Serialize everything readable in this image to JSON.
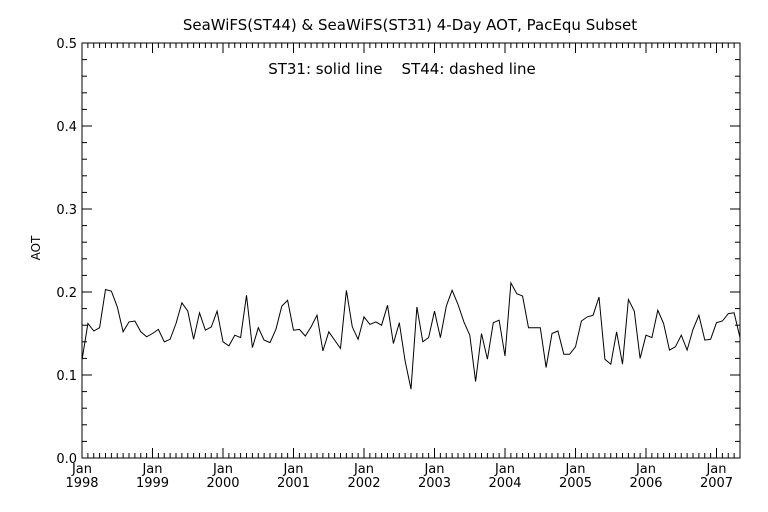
{
  "chart_data": {
    "type": "line",
    "title": "SeaWiFS(ST44) & SeaWiFS(ST31) 4-Day AOT, PacEqu Subset",
    "annotation": "ST31: solid line    ST44: dashed line",
    "xlabel": "",
    "ylabel": "AOT",
    "ylim": [
      0.0,
      0.5
    ],
    "yticks": [
      "0.0",
      "0.1",
      "0.2",
      "0.3",
      "0.4",
      "0.5"
    ],
    "yticks_values": [
      0.0,
      0.1,
      0.2,
      0.3,
      0.4,
      0.5
    ],
    "xlim": [
      "1998-01",
      "2007-05"
    ],
    "xticks": [
      {
        "month": "Jan",
        "year": "1998",
        "date": "1998-01"
      },
      {
        "month": "Jan",
        "year": "1999",
        "date": "1999-01"
      },
      {
        "month": "Jan",
        "year": "2000",
        "date": "2000-01"
      },
      {
        "month": "Jan",
        "year": "2001",
        "date": "2001-01"
      },
      {
        "month": "Jan",
        "year": "2002",
        "date": "2002-01"
      },
      {
        "month": "Jan",
        "year": "2003",
        "date": "2003-01"
      },
      {
        "month": "Jan",
        "year": "2004",
        "date": "2004-01"
      },
      {
        "month": "Jan",
        "year": "2005",
        "date": "2005-01"
      },
      {
        "month": "Jan",
        "year": "2006",
        "date": "2006-01"
      },
      {
        "month": "Jan",
        "year": "2007",
        "date": "2007-01"
      }
    ],
    "grid": false,
    "series": [
      {
        "name": "ST31",
        "style": "solid",
        "color": "#000000",
        "x": [
          "1998-01",
          "1998-02",
          "1998-03",
          "1998-04",
          "1998-05",
          "1998-06",
          "1998-07",
          "1998-08",
          "1998-09",
          "1998-10",
          "1998-11",
          "1998-12",
          "1999-01",
          "1999-02",
          "1999-03",
          "1999-04",
          "1999-05",
          "1999-06",
          "1999-07",
          "1999-08",
          "1999-09",
          "1999-10",
          "1999-11",
          "1999-12",
          "2000-01",
          "2000-02",
          "2000-03",
          "2000-04",
          "2000-05",
          "2000-06",
          "2000-07",
          "2000-08",
          "2000-09",
          "2000-10",
          "2000-11",
          "2000-12",
          "2001-01",
          "2001-02",
          "2001-03",
          "2001-04",
          "2001-05",
          "2001-06",
          "2001-07",
          "2001-08",
          "2001-09",
          "2001-10",
          "2001-11",
          "2001-12",
          "2002-01",
          "2002-02",
          "2002-03",
          "2002-04",
          "2002-05",
          "2002-06",
          "2002-07",
          "2002-08",
          "2002-09",
          "2002-10",
          "2002-11",
          "2002-12",
          "2003-01",
          "2003-02",
          "2003-03",
          "2003-04",
          "2003-05",
          "2003-06",
          "2003-07",
          "2003-08",
          "2003-09",
          "2003-10",
          "2003-11",
          "2003-12",
          "2004-01",
          "2004-02",
          "2004-03",
          "2004-04",
          "2004-05",
          "2004-06",
          "2004-07",
          "2004-08",
          "2004-09",
          "2004-10",
          "2004-11",
          "2004-12",
          "2005-01",
          "2005-02",
          "2005-03",
          "2005-04",
          "2005-05",
          "2005-06",
          "2005-07",
          "2005-08",
          "2005-09",
          "2005-10",
          "2005-11",
          "2005-12",
          "2006-01",
          "2006-02",
          "2006-03",
          "2006-04",
          "2006-05",
          "2006-06",
          "2006-07",
          "2006-08",
          "2006-09",
          "2006-10",
          "2006-11",
          "2006-12",
          "2007-01",
          "2007-02",
          "2007-03",
          "2007-04",
          "2007-05"
        ],
        "y": [
          0.118,
          0.162,
          0.153,
          0.157,
          0.203,
          0.201,
          0.182,
          0.152,
          0.164,
          0.165,
          0.152,
          0.146,
          0.15,
          0.155,
          0.14,
          0.143,
          0.162,
          0.187,
          0.177,
          0.143,
          0.175,
          0.154,
          0.158,
          0.177,
          0.14,
          0.135,
          0.148,
          0.145,
          0.196,
          0.133,
          0.157,
          0.142,
          0.139,
          0.155,
          0.183,
          0.19,
          0.154,
          0.155,
          0.147,
          0.158,
          0.172,
          0.129,
          0.152,
          0.142,
          0.132,
          0.202,
          0.158,
          0.143,
          0.17,
          0.161,
          0.164,
          0.16,
          0.184,
          0.138,
          0.163,
          0.117,
          0.083,
          0.182,
          0.14,
          0.145,
          0.177,
          0.145,
          0.183,
          0.202,
          0.185,
          0.164,
          0.148,
          0.092,
          0.15,
          0.119,
          0.163,
          0.166,
          0.123,
          0.211,
          0.198,
          0.195,
          0.157,
          0.157,
          0.157,
          0.109,
          0.15,
          0.153,
          0.125,
          0.125,
          0.134,
          0.165,
          0.17,
          0.172,
          0.194,
          0.119,
          0.113,
          0.152,
          0.113,
          0.191,
          0.177,
          0.12,
          0.148,
          0.145,
          0.178,
          0.162,
          0.13,
          0.134,
          0.148,
          0.13,
          0.155,
          0.172,
          0.142,
          0.143,
          0.163,
          0.165,
          0.174,
          0.175,
          0.145
        ]
      }
    ]
  }
}
